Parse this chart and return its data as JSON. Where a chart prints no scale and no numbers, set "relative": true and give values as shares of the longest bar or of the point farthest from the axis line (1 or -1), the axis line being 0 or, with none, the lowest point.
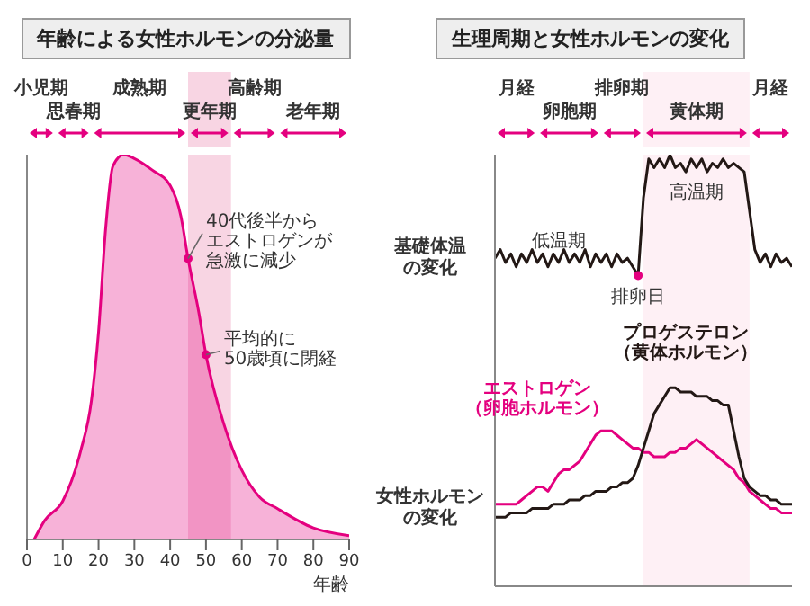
{
  "chart_data": [
    {
      "type": "area",
      "title": "年齢による女性ホルモンの分泌量",
      "xlabel": "年齢",
      "relative": true,
      "tick_labels": "x",
      "color": "#e4007f",
      "x": [
        2,
        5,
        10,
        15,
        18,
        20,
        22,
        24,
        27,
        30,
        35,
        40,
        43,
        45,
        48,
        50,
        55,
        60,
        65,
        70,
        80,
        90
      ],
      "values": [
        0,
        0.05,
        0.1,
        0.23,
        0.36,
        0.54,
        0.81,
        0.97,
        1,
        0.99,
        0.96,
        0.92,
        0.84,
        0.73,
        0.59,
        0.48,
        0.3,
        0.18,
        0.11,
        0.08,
        0.03,
        0.01
      ],
      "xlim": [
        0,
        90
      ],
      "xticks": [
        0,
        10,
        20,
        30,
        40,
        50,
        60,
        70,
        80,
        90
      ],
      "bands": [
        {
          "axis": "x",
          "from": 45,
          "to": 57,
          "label": "更年期",
          "color": "#f3b9d1"
        }
      ],
      "annotations": [
        "小児期",
        "思春期",
        "成熟期",
        "高齢期",
        "老年期",
        {
          "text": "40代後半からエストロゲンが急激に減少",
          "x": 45,
          "y": 0.73
        },
        {
          "text": "平均的に50歳頃に閉経",
          "x": 50,
          "y": 0.48
        }
      ]
    },
    {
      "type": "line",
      "title": "生理周期と女性ホルモンの変化",
      "relative": true,
      "tick_labels": false,
      "categories": [
        null,
        null,
        null,
        null,
        null,
        null,
        null,
        null,
        null,
        null,
        null,
        null,
        null,
        null,
        null,
        null,
        null,
        null,
        null,
        null,
        null,
        null,
        null,
        null,
        null,
        null,
        null,
        null,
        null,
        null,
        null,
        null,
        null,
        null,
        null,
        null,
        null,
        null,
        null,
        null,
        null,
        null,
        null,
        null,
        null,
        null,
        null,
        null,
        null,
        null,
        null,
        null,
        null,
        null,
        null,
        null,
        null
      ],
      "series": [
        {
          "color": "#231815",
          "values": [
            0.76,
            0.78,
            0.75,
            0.77,
            0.74,
            0.77,
            0.75,
            0.78,
            0.75,
            0.77,
            0.74,
            0.77,
            0.75,
            0.78,
            0.75,
            0.77,
            0.75,
            0.78,
            0.74,
            0.77,
            0.75,
            0.77,
            0.74,
            0.77,
            0.75,
            0.76,
            0.74,
            0.72,
            0.9,
            0.99,
            0.97,
            0.99,
            0.97,
            1,
            0.97,
            0.98,
            0.96,
            0.99,
            0.97,
            0.99,
            0.96,
            0.98,
            0.97,
            0.99,
            0.97,
            0.98,
            0.97,
            0.96,
            0.87,
            0.78,
            0.75,
            0.77,
            0.74,
            0.77,
            0.75,
            0.76,
            0.74
          ]
        },
        {
          "name": "エストロゲン（卵胞ホルモン）",
          "color": "#e4007f",
          "values": [
            0.19,
            0.19,
            0.19,
            0.19,
            0.19,
            0.2,
            0.21,
            0.22,
            0.23,
            0.23,
            0.22,
            0.24,
            0.26,
            0.27,
            0.27,
            0.28,
            0.29,
            0.31,
            0.33,
            0.35,
            0.36,
            0.36,
            0.36,
            0.35,
            0.34,
            0.33,
            0.32,
            0.32,
            0.31,
            0.31,
            0.3,
            0.3,
            0.3,
            0.31,
            0.31,
            0.32,
            0.32,
            0.33,
            0.34,
            0.33,
            0.32,
            0.31,
            0.3,
            0.29,
            0.28,
            0.27,
            0.25,
            0.24,
            0.22,
            0.21,
            0.2,
            0.19,
            0.18,
            0.18,
            0.17,
            0.17,
            0.17
          ]
        },
        {
          "name": "プロゲステロン（黄体ホルモン）",
          "color": "#231815",
          "values": [
            0.16,
            0.16,
            0.16,
            0.17,
            0.17,
            0.17,
            0.17,
            0.18,
            0.18,
            0.18,
            0.18,
            0.19,
            0.19,
            0.19,
            0.2,
            0.2,
            0.2,
            0.21,
            0.21,
            0.22,
            0.22,
            0.22,
            0.23,
            0.23,
            0.24,
            0.24,
            0.25,
            0.28,
            0.32,
            0.36,
            0.4,
            0.42,
            0.44,
            0.46,
            0.46,
            0.45,
            0.45,
            0.45,
            0.44,
            0.44,
            0.44,
            0.43,
            0.43,
            0.42,
            0.42,
            0.36,
            0.3,
            0.25,
            0.23,
            0.22,
            0.21,
            0.21,
            0.2,
            0.2,
            0.19,
            0.19,
            0.19
          ]
        }
      ],
      "annotations": [
        "月経",
        "卵胞期",
        "排卵期",
        "黄体期",
        "月経",
        "基礎体温の変化",
        "女性ホルモンの変化",
        "低温期",
        "排卵日",
        "高温期"
      ]
    }
  ]
}
